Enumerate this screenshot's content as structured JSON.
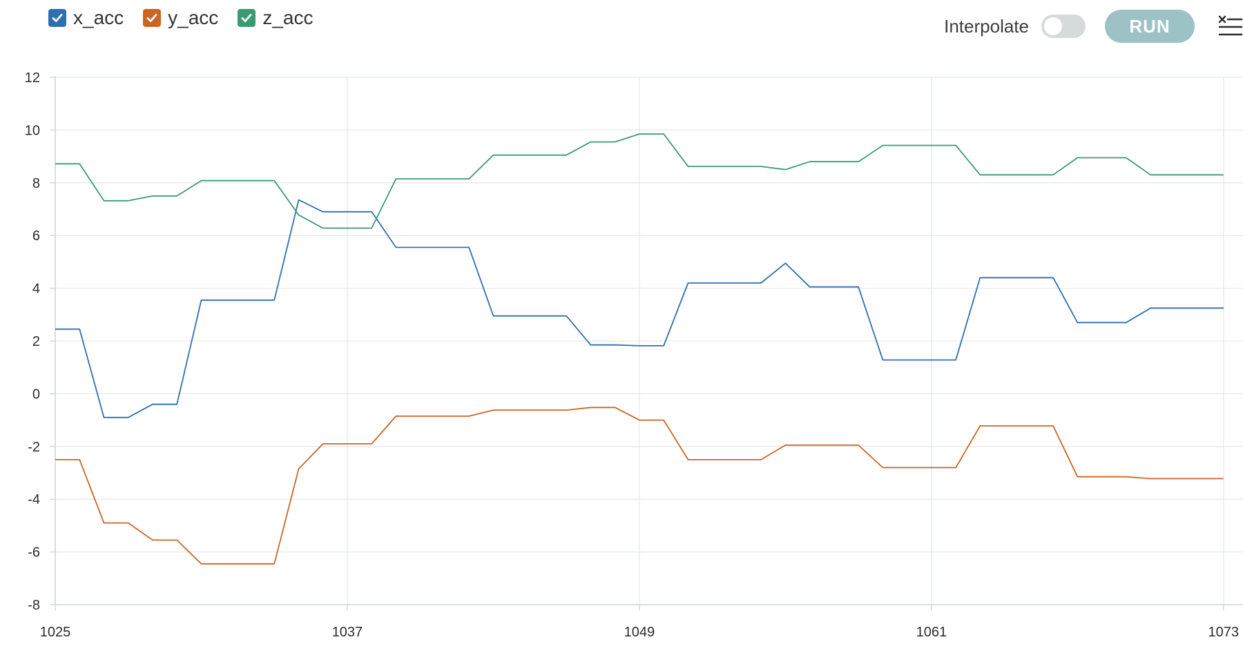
{
  "legend": [
    {
      "label": "x_acc",
      "color": "#2e6fb0",
      "checked": true
    },
    {
      "label": "y_acc",
      "color": "#cc6424",
      "checked": true
    },
    {
      "label": "z_acc",
      "color": "#3a9a74",
      "checked": true
    }
  ],
  "controls": {
    "interpolate_label": "Interpolate",
    "interpolate_on": false,
    "run_label": "RUN",
    "clear_icon": "clear-list-icon"
  },
  "chart_data": {
    "type": "line",
    "title": "",
    "xlabel": "",
    "ylabel": "",
    "xlim": [
      1025,
      1073.8
    ],
    "ylim": [
      -8,
      12
    ],
    "x_ticks": [
      "1025",
      "1037",
      "1049",
      "1061",
      "1073"
    ],
    "y_ticks": [
      "12",
      "10",
      "8",
      "6",
      "4",
      "2",
      "0",
      "-2",
      "-4",
      "-6",
      "-8"
    ],
    "grid": true,
    "legend_position": "top-left",
    "x": [
      1025,
      1026,
      1027,
      1028,
      1029,
      1030,
      1031,
      1032,
      1033,
      1034,
      1035,
      1036,
      1037,
      1038,
      1039,
      1040,
      1041,
      1042,
      1043,
      1044,
      1045,
      1046,
      1047,
      1048,
      1049,
      1050,
      1051,
      1052,
      1053,
      1054,
      1055,
      1056,
      1057,
      1058,
      1059,
      1060,
      1061,
      1062,
      1063,
      1064,
      1065,
      1066,
      1067,
      1068,
      1069,
      1070,
      1071,
      1072,
      1073
    ],
    "series": [
      {
        "name": "x_acc",
        "color": "#2e6fb0",
        "values": [
          2.45,
          2.45,
          -0.9,
          -0.9,
          -0.4,
          -0.4,
          3.55,
          3.55,
          3.55,
          3.55,
          7.35,
          6.9,
          6.9,
          6.9,
          5.55,
          5.55,
          5.55,
          5.55,
          2.95,
          2.95,
          2.95,
          2.95,
          1.85,
          1.85,
          1.82,
          1.82,
          4.2,
          4.2,
          4.2,
          4.2,
          4.95,
          4.05,
          4.05,
          4.05,
          1.28,
          1.28,
          1.28,
          1.28,
          4.4,
          4.4,
          4.4,
          4.4,
          2.7,
          2.7,
          2.7,
          3.25,
          3.25,
          3.25,
          3.25
        ]
      },
      {
        "name": "y_acc",
        "color": "#cc6424",
        "values": [
          -2.5,
          -2.5,
          -4.9,
          -4.9,
          -5.55,
          -5.55,
          -6.45,
          -6.45,
          -6.45,
          -6.45,
          -2.85,
          -1.9,
          -1.9,
          -1.9,
          -0.85,
          -0.85,
          -0.85,
          -0.85,
          -0.62,
          -0.62,
          -0.62,
          -0.62,
          -0.52,
          -0.52,
          -1.0,
          -1.0,
          -2.5,
          -2.5,
          -2.5,
          -2.5,
          -1.95,
          -1.95,
          -1.95,
          -1.95,
          -2.8,
          -2.8,
          -2.8,
          -2.8,
          -1.22,
          -1.22,
          -1.22,
          -1.22,
          -3.15,
          -3.15,
          -3.15,
          -3.22,
          -3.22,
          -3.22,
          -3.22
        ]
      },
      {
        "name": "z_acc",
        "color": "#3a9a74",
        "values": [
          8.72,
          8.72,
          7.32,
          7.32,
          7.5,
          7.5,
          8.08,
          8.08,
          8.08,
          8.08,
          6.78,
          6.28,
          6.28,
          6.28,
          8.15,
          8.15,
          8.15,
          8.15,
          9.05,
          9.05,
          9.05,
          9.05,
          9.55,
          9.55,
          9.85,
          9.85,
          8.62,
          8.62,
          8.62,
          8.62,
          8.5,
          8.8,
          8.8,
          8.8,
          9.42,
          9.42,
          9.42,
          9.42,
          8.3,
          8.3,
          8.3,
          8.3,
          8.95,
          8.95,
          8.95,
          8.3,
          8.3,
          8.3,
          8.3
        ]
      }
    ]
  }
}
